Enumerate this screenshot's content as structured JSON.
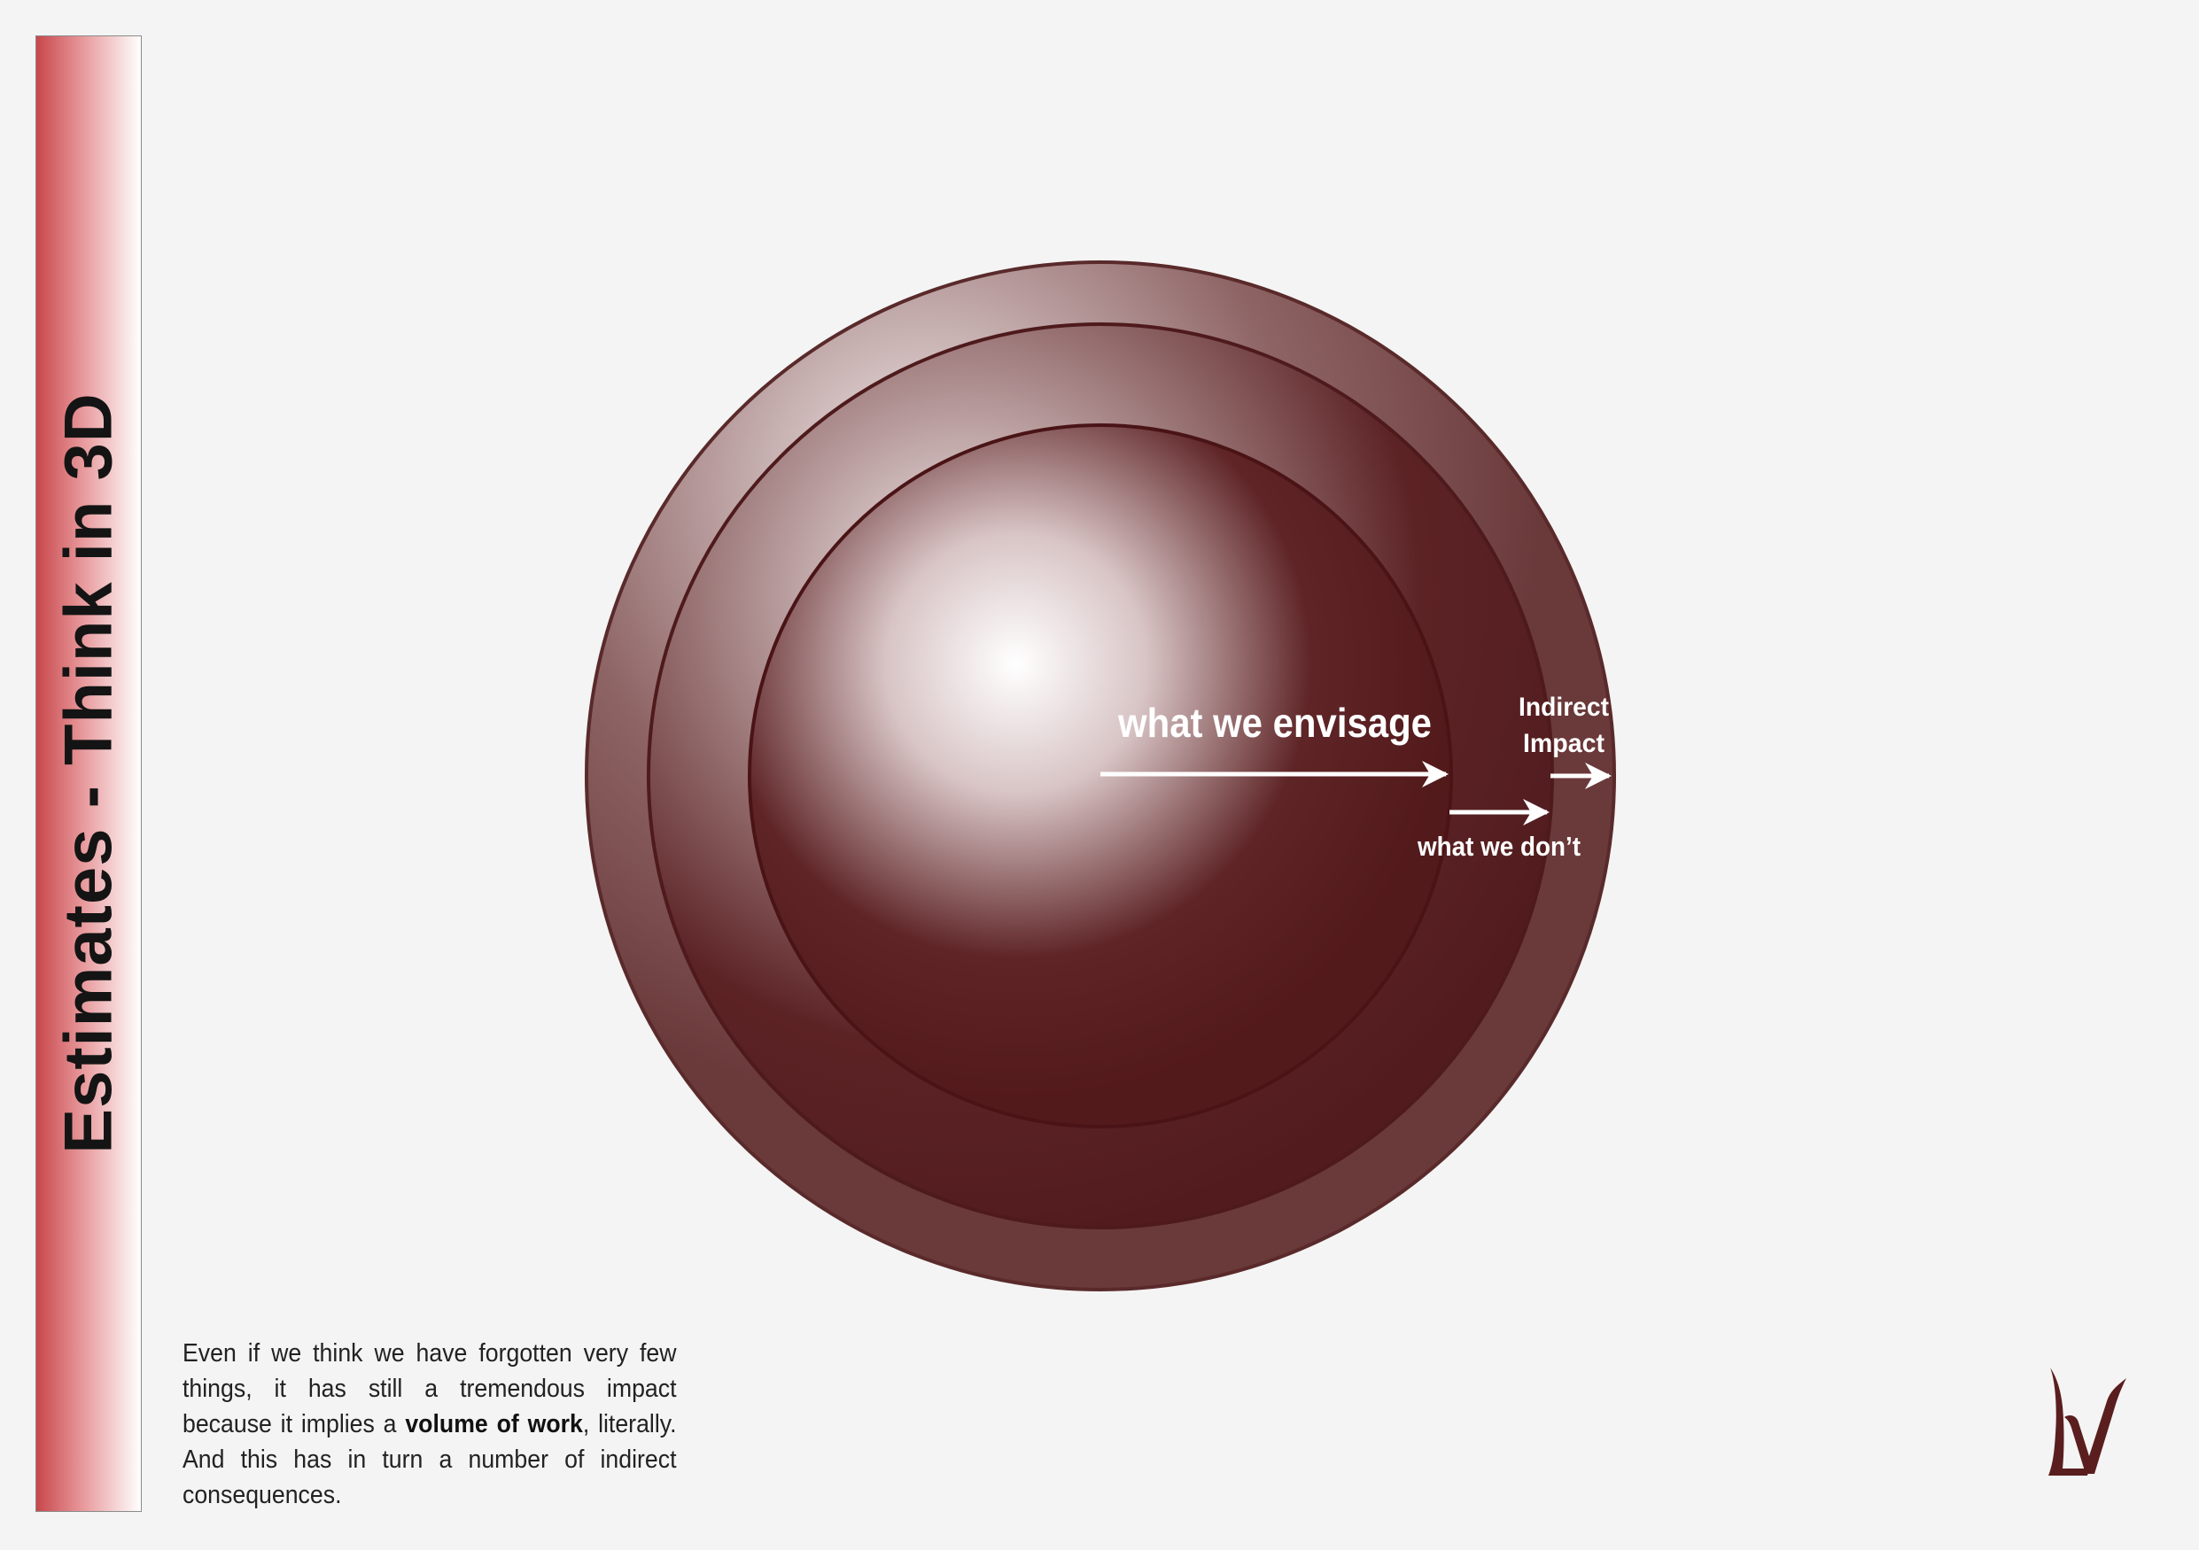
{
  "title": "Estimates - Think in 3D",
  "diagram": {
    "labels": {
      "envisage": "what we envisage",
      "dont": "what we don’t",
      "indirect_line1": "Indirect",
      "indirect_line2": "Impact"
    },
    "colors": {
      "sphere_dark": "#541b1d",
      "outer_ring": "#6a393a",
      "highlight": "#ffffff",
      "arrow": "#ffffff"
    }
  },
  "caption": {
    "part1": "Even if we think we have forgotten very few things, it has still a tremendous impact because it implies a ",
    "bold": "volume of work",
    "part2": ", literally. And this has in turn a number of indirect consequences."
  },
  "logo": {
    "icon": "lv-logo-icon",
    "color": "#5a1e1f"
  }
}
